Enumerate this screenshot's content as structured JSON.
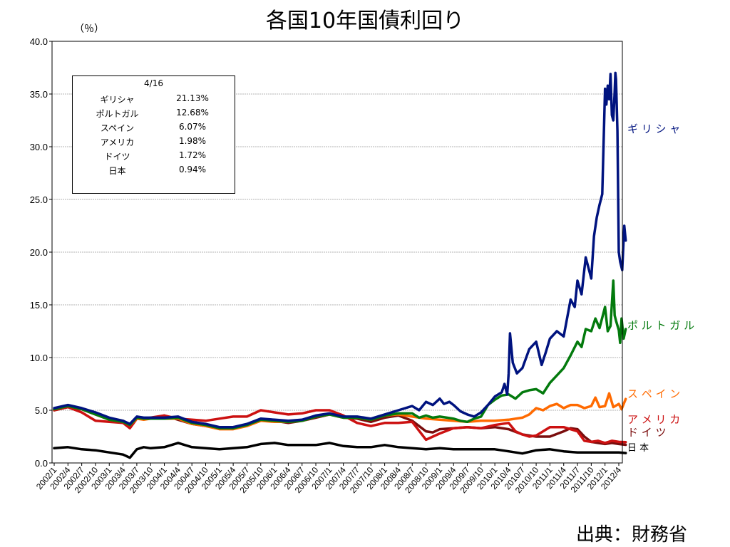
{
  "chart_data": {
    "type": "line",
    "title": "各国10年国債利回り",
    "unit_label": "（％）",
    "source": "出典：財務省",
    "ylim": [
      0,
      40
    ],
    "yticks": [
      "0.0",
      "5.0",
      "10.0",
      "15.0",
      "20.0",
      "25.0",
      "30.0",
      "35.0",
      "40.0"
    ],
    "grid": "horizontal",
    "xlabels": [
      "2002/1",
      "2002/4",
      "2002/7",
      "2002/10",
      "2003/1",
      "2003/4",
      "2003/7",
      "2003/10",
      "2004/1",
      "2004/4",
      "2004/7",
      "2004/10",
      "2005/1",
      "2005/4",
      "2005/7",
      "2005/10",
      "2006/1",
      "2006/4",
      "2006/7",
      "2006/10",
      "2007/1",
      "2007/4",
      "2007/7",
      "2007/10",
      "2008/1",
      "2008/4",
      "2008/7",
      "2008/10",
      "2009/1",
      "2009/4",
      "2009/7",
      "2009/10",
      "2010/1",
      "2010/4",
      "2010/7",
      "2010/10",
      "2011/1",
      "2011/4",
      "2011/7",
      "2011/10",
      "2012/1",
      "2012/4"
    ],
    "legend_box": {
      "date": "4/16",
      "rows": [
        {
          "name": "ギリシャ",
          "value": "21.13%"
        },
        {
          "name": "ポルトガル",
          "value": "12.68%"
        },
        {
          "name": "スペイン",
          "value": "6.07%"
        },
        {
          "name": "アメリカ",
          "value": "1.98%"
        },
        {
          "name": "ドイツ",
          "value": "1.72%"
        },
        {
          "name": "日本",
          "value": "0.94%"
        }
      ]
    },
    "series": [
      {
        "name": "ギリシャ",
        "color": "#00137f",
        "label": "ギ リ シ ャ",
        "x": [
          0,
          1,
          2,
          3,
          4,
          5,
          5.5,
          6,
          6.5,
          7,
          8,
          9,
          10,
          11,
          12,
          13,
          14,
          15,
          16,
          17,
          18,
          19,
          20,
          21,
          22,
          23,
          24,
          25,
          26,
          26.5,
          27,
          27.5,
          28,
          28.3,
          28.7,
          29,
          29.5,
          30,
          30.5,
          31,
          31.5,
          32,
          32.5,
          32.7,
          32.9,
          33,
          33.1,
          33.3,
          33.6,
          34,
          34.5,
          35,
          35.4,
          35.7,
          36,
          36.5,
          37,
          37.5,
          37.8,
          38,
          38.3,
          38.6,
          39,
          39.2,
          39.4,
          39.6,
          39.8,
          40,
          40.1,
          40.2,
          40.3,
          40.4,
          40.5,
          40.6,
          40.7,
          40.75,
          40.8,
          40.9,
          41,
          41.1,
          41.25,
          41.4,
          41.5
        ],
        "y": [
          5.2,
          5.5,
          5.2,
          4.8,
          4.3,
          4.0,
          3.7,
          4.4,
          4.3,
          4.3,
          4.3,
          4.4,
          3.9,
          3.7,
          3.4,
          3.4,
          3.7,
          4.2,
          4.1,
          4.0,
          4.1,
          4.5,
          4.7,
          4.4,
          4.4,
          4.2,
          4.6,
          5.0,
          5.4,
          5.0,
          5.8,
          5.5,
          6.1,
          5.6,
          5.8,
          5.5,
          4.9,
          4.6,
          4.4,
          4.8,
          5.5,
          6.3,
          6.7,
          7.5,
          6.5,
          8.5,
          12.3,
          9.5,
          8.5,
          9.0,
          10.8,
          11.5,
          9.3,
          10.5,
          11.8,
          12.5,
          12.0,
          15.5,
          14.8,
          17.3,
          16.0,
          19.5,
          17.5,
          21.5,
          23.3,
          24.5,
          25.5,
          35.5,
          34.0,
          35.8,
          34.5,
          36.9,
          33.0,
          32.5,
          35.2,
          37.0,
          36.4,
          31.5,
          20.0,
          19.1,
          18.3,
          22.5,
          21.1
        ]
      },
      {
        "name": "ポルトガル",
        "color": "#037a0d",
        "label": "ポ ル ト ガ ル",
        "x": [
          0,
          1,
          2,
          3,
          4,
          5,
          5.5,
          6,
          6.5,
          7,
          8,
          9,
          10,
          11,
          12,
          13,
          14,
          15,
          16,
          17,
          18,
          19,
          20,
          21,
          22,
          23,
          24,
          25,
          26,
          26.5,
          27,
          27.5,
          28,
          29,
          29.5,
          30,
          30.5,
          31,
          31.5,
          32,
          32.5,
          33,
          33.5,
          34,
          34.5,
          35,
          35.5,
          36,
          36.5,
          37,
          37.5,
          38,
          38.3,
          38.6,
          39,
          39.3,
          39.6,
          40,
          40.2,
          40.4,
          40.6,
          40.7,
          40.8,
          41,
          41.1,
          41.2,
          41.35,
          41.5
        ],
        "y": [
          5.1,
          5.4,
          5.1,
          4.6,
          4.1,
          3.9,
          3.6,
          4.3,
          4.2,
          4.2,
          4.2,
          4.3,
          3.8,
          3.6,
          3.3,
          3.3,
          3.6,
          4.1,
          4.0,
          3.9,
          4.0,
          4.4,
          4.6,
          4.3,
          4.3,
          4.1,
          4.5,
          4.7,
          4.7,
          4.3,
          4.5,
          4.3,
          4.4,
          4.2,
          4.0,
          3.9,
          4.2,
          4.4,
          5.5,
          6.0,
          6.4,
          6.5,
          6.1,
          6.7,
          6.9,
          7.0,
          6.6,
          7.6,
          8.3,
          9.0,
          10.2,
          11.5,
          11.0,
          12.7,
          12.5,
          13.7,
          12.8,
          14.8,
          12.5,
          13.0,
          17.3,
          14.0,
          13.5,
          12.6,
          11.4,
          13.7,
          11.8,
          12.7
        ]
      },
      {
        "name": "スペイン",
        "color": "#ff6a00",
        "label": "ス ペ イ ン",
        "x": [
          0,
          1,
          2,
          3,
          4,
          5,
          5.5,
          6,
          6.5,
          7,
          8,
          9,
          10,
          11,
          12,
          13,
          14,
          15,
          16,
          17,
          18,
          19,
          20,
          21,
          22,
          23,
          24,
          25,
          26,
          27,
          28,
          29,
          30,
          31,
          32,
          33,
          34,
          34.5,
          35,
          35.5,
          36,
          36.5,
          37,
          37.5,
          38,
          38.5,
          39,
          39.3,
          39.6,
          40,
          40.3,
          40.6,
          41,
          41.2,
          41.5
        ],
        "y": [
          5.1,
          5.4,
          5.1,
          4.6,
          4.1,
          3.9,
          3.6,
          4.2,
          4.1,
          4.2,
          4.2,
          4.2,
          3.7,
          3.5,
          3.2,
          3.2,
          3.5,
          4.0,
          3.9,
          3.9,
          4.0,
          4.4,
          4.6,
          4.3,
          4.3,
          4.1,
          4.5,
          4.6,
          4.4,
          4.2,
          4.1,
          4.0,
          3.9,
          4.0,
          4.0,
          4.1,
          4.3,
          4.6,
          5.2,
          5.0,
          5.4,
          5.6,
          5.2,
          5.5,
          5.5,
          5.2,
          5.4,
          6.2,
          5.3,
          5.4,
          6.6,
          5.3,
          5.6,
          5.1,
          6.07
        ]
      },
      {
        "name": "アメリカ",
        "color": "#cc1111",
        "label": "ア メ リ カ",
        "x": [
          0,
          1,
          2,
          3,
          4,
          5,
          5.5,
          6,
          6.5,
          7,
          8,
          9,
          10,
          11,
          12,
          13,
          14,
          15,
          16,
          17,
          18,
          19,
          20,
          21,
          22,
          23,
          24,
          25,
          26,
          27,
          27.5,
          28,
          29,
          30,
          31,
          32,
          33,
          33.5,
          34,
          34.5,
          35,
          35.5,
          36,
          37,
          38,
          38.5,
          39,
          39.5,
          40,
          40.5,
          41,
          41.5
        ],
        "y": [
          5.0,
          5.3,
          4.8,
          4.0,
          3.9,
          3.8,
          3.3,
          4.2,
          4.2,
          4.3,
          4.5,
          4.2,
          4.1,
          4.0,
          4.2,
          4.4,
          4.4,
          5.0,
          4.8,
          4.6,
          4.7,
          5.0,
          5.0,
          4.5,
          3.8,
          3.5,
          3.8,
          3.8,
          3.9,
          2.2,
          2.5,
          2.8,
          3.3,
          3.4,
          3.3,
          3.6,
          3.8,
          3.0,
          2.7,
          2.5,
          2.6,
          3.0,
          3.4,
          3.4,
          3.0,
          2.1,
          2.0,
          2.1,
          1.9,
          2.1,
          2.0,
          1.98
        ]
      },
      {
        "name": "ドイツ",
        "color": "#7a0d0d",
        "label": "ド イ ツ",
        "x": [
          0,
          1,
          2,
          3,
          4,
          5,
          5.5,
          6,
          6.5,
          7,
          8,
          9,
          10,
          11,
          12,
          13,
          14,
          15,
          16,
          17,
          18,
          19,
          20,
          21,
          22,
          23,
          24,
          25,
          26,
          27,
          27.5,
          28,
          29,
          30,
          31,
          32,
          33,
          34,
          35,
          36,
          37,
          37.5,
          38,
          38.5,
          39,
          39.5,
          40,
          40.5,
          41,
          41.5
        ],
        "y": [
          5.0,
          5.3,
          5.1,
          4.6,
          4.2,
          4.0,
          3.6,
          4.3,
          4.2,
          4.2,
          4.5,
          4.1,
          3.7,
          3.5,
          3.3,
          3.4,
          3.6,
          4.0,
          4.0,
          3.8,
          4.0,
          4.3,
          4.6,
          4.3,
          4.2,
          3.9,
          4.3,
          4.5,
          4.0,
          3.0,
          2.9,
          3.2,
          3.3,
          3.4,
          3.3,
          3.4,
          3.2,
          2.7,
          2.5,
          2.5,
          3.0,
          3.3,
          3.2,
          2.5,
          2.0,
          1.9,
          1.8,
          1.9,
          1.8,
          1.72
        ]
      },
      {
        "name": "日本",
        "color": "#000000",
        "label": "日 本",
        "x": [
          0,
          1,
          2,
          3,
          4,
          5,
          5.5,
          6,
          6.5,
          7,
          8,
          9,
          10,
          11,
          12,
          13,
          14,
          15,
          16,
          17,
          18,
          19,
          20,
          21,
          22,
          23,
          24,
          25,
          26,
          27,
          28,
          29,
          30,
          31,
          32,
          33,
          34,
          35,
          36,
          37,
          38,
          39,
          40,
          41,
          41.5
        ],
        "y": [
          1.4,
          1.5,
          1.3,
          1.2,
          1.0,
          0.8,
          0.5,
          1.3,
          1.5,
          1.4,
          1.5,
          1.9,
          1.5,
          1.4,
          1.3,
          1.4,
          1.5,
          1.8,
          1.9,
          1.7,
          1.7,
          1.7,
          1.9,
          1.6,
          1.5,
          1.5,
          1.7,
          1.5,
          1.4,
          1.3,
          1.4,
          1.3,
          1.3,
          1.3,
          1.3,
          1.1,
          0.9,
          1.2,
          1.3,
          1.1,
          1.0,
          1.0,
          1.0,
          1.0,
          0.94
        ]
      }
    ]
  }
}
